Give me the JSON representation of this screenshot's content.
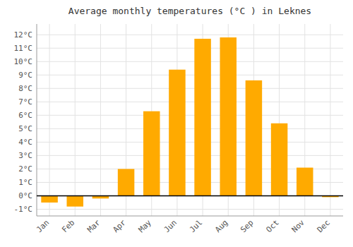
{
  "chart_data": {
    "type": "bar",
    "title": "Average monthly temperatures (°C ) in Leknes",
    "categories": [
      "Jan",
      "Feb",
      "Mar",
      "Apr",
      "May",
      "Jun",
      "Jul",
      "Aug",
      "Sep",
      "Oct",
      "Nov",
      "Dec"
    ],
    "values": [
      -0.5,
      -0.8,
      -0.2,
      2.0,
      6.3,
      9.4,
      11.7,
      11.8,
      8.6,
      5.4,
      2.1,
      -0.1
    ],
    "color": "#FFAA00",
    "ylim": [
      -1.5,
      12.8
    ],
    "yticks": [
      {
        "value": -1,
        "label": "-1°C"
      },
      {
        "value": 0,
        "label": "0°C"
      },
      {
        "value": 1,
        "label": "1°C"
      },
      {
        "value": 2,
        "label": "2°C"
      },
      {
        "value": 3,
        "label": "3°C"
      },
      {
        "value": 4,
        "label": "4°C"
      },
      {
        "value": 5,
        "label": "5°C"
      },
      {
        "value": 6,
        "label": "6°C"
      },
      {
        "value": 7,
        "label": "7°C"
      },
      {
        "value": 8,
        "label": "8°C"
      },
      {
        "value": 9,
        "label": "9°C"
      },
      {
        "value": 10,
        "label": "10°C"
      },
      {
        "value": 11,
        "label": "11°C"
      },
      {
        "value": 12,
        "label": "12°C"
      }
    ],
    "grid": true
  }
}
